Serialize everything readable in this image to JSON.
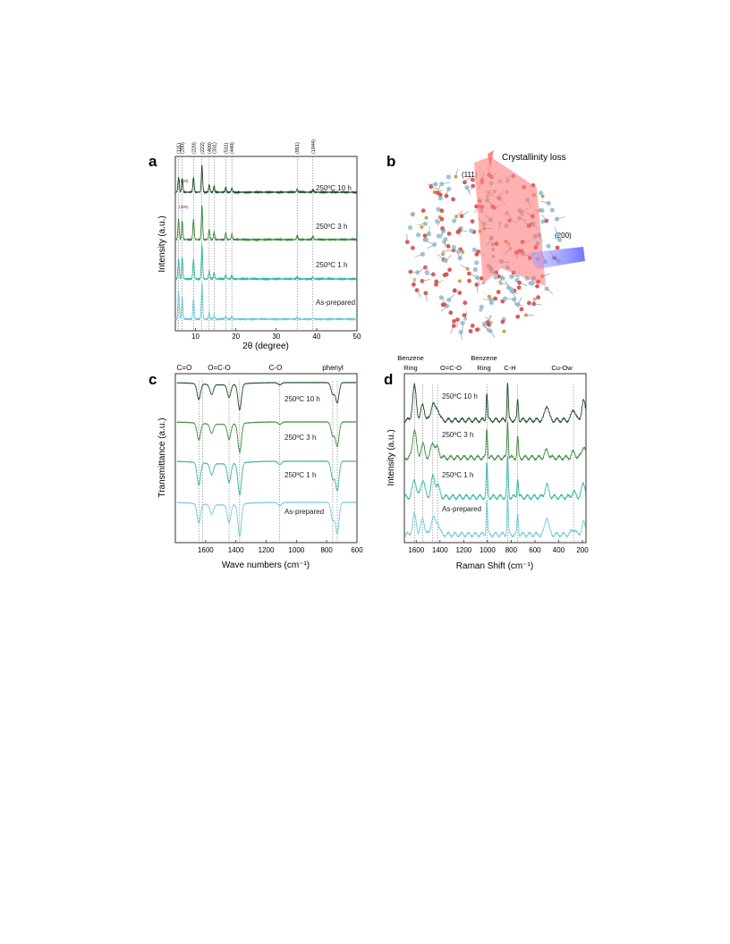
{
  "figure": {
    "panels": {
      "a": {
        "letter": "a",
        "hkl_labels": [
          "(111)",
          "(200)",
          "(220)",
          "(222)",
          "(400)",
          "(331)",
          "(511)",
          "(440)",
          "(851)",
          "(1044)"
        ],
        "trace_labels": [
          "250ºC 10 h",
          "250ºC 3 h",
          "250ºC 1 h",
          "As-prepared"
        ],
        "mini_labels": [
          "(200)",
          "(200)"
        ]
      },
      "b": {
        "letter": "b",
        "title": "Crystallinity loss",
        "label_111": "(111)",
        "label_200": "(200)"
      },
      "c": {
        "letter": "c",
        "group_labels": [
          "C=O",
          "O=C-O",
          "C-O",
          "phenyl"
        ],
        "trace_labels": [
          "250ºC 10 h",
          "250ºC 3 h",
          "250ºC 1 h",
          "As-prepared"
        ]
      },
      "d": {
        "letter": "d",
        "group_labels": [
          "Benzene\nRing",
          "O=C-O",
          "Benzene\nRing",
          "C-H",
          "Cu-Ow"
        ],
        "trace_labels": [
          "250ºC 10 h",
          "250ºC 3 h",
          "250ºC 1 h",
          "As-prepared"
        ]
      }
    },
    "colors": {
      "t10h": "#1b4d24",
      "t3h": "#3a8a3a",
      "t1h": "#36b5a6",
      "asprep": "#6fc9dc",
      "guide": "#555555"
    }
  },
  "chart_data": [
    {
      "type": "line",
      "panel": "a",
      "xlabel": "2θ (degree)",
      "ylabel": "Intensity (a.u.)",
      "xlim": [
        5,
        50
      ],
      "xticks": [
        10,
        20,
        30,
        40,
        50
      ],
      "peak_positions": [
        5.8,
        6.7,
        9.5,
        11.6,
        13.4,
        14.6,
        17.5,
        19.0,
        35.2,
        39.1
      ],
      "series": [
        {
          "name": "250ºC 10 h",
          "peaks": [
            [
              5.8,
              0.55
            ],
            [
              6.7,
              0.5
            ],
            [
              9.5,
              0.55
            ],
            [
              11.6,
              1.0
            ],
            [
              13.4,
              0.28
            ],
            [
              14.6,
              0.22
            ],
            [
              17.5,
              0.18
            ],
            [
              19.0,
              0.15
            ],
            [
              35.2,
              0.12
            ],
            [
              39.1,
              0.1
            ]
          ]
        },
        {
          "name": "250ºC 3 h",
          "peaks": [
            [
              5.8,
              0.6
            ],
            [
              6.7,
              0.55
            ],
            [
              9.5,
              0.6
            ],
            [
              11.6,
              1.0
            ],
            [
              13.4,
              0.3
            ],
            [
              14.6,
              0.22
            ],
            [
              17.5,
              0.2
            ],
            [
              19.0,
              0.16
            ],
            [
              35.2,
              0.12
            ],
            [
              39.1,
              0.1
            ]
          ]
        },
        {
          "name": "250ºC 1 h",
          "peaks": [
            [
              5.8,
              0.55
            ],
            [
              6.7,
              0.6
            ],
            [
              9.5,
              0.55
            ],
            [
              11.6,
              0.95
            ],
            [
              13.4,
              0.22
            ],
            [
              14.6,
              0.18
            ],
            [
              17.5,
              0.12
            ],
            [
              19.0,
              0.1
            ],
            [
              35.2,
              0.06
            ],
            [
              39.1,
              0.05
            ]
          ]
        },
        {
          "name": "As-prepared",
          "peaks": [
            [
              5.8,
              0.75
            ],
            [
              6.7,
              0.6
            ],
            [
              9.5,
              0.55
            ],
            [
              11.6,
              0.95
            ],
            [
              13.4,
              0.18
            ],
            [
              14.6,
              0.12
            ],
            [
              17.5,
              0.08
            ],
            [
              19.0,
              0.06
            ],
            [
              35.2,
              0.04
            ],
            [
              39.1,
              0.03
            ]
          ]
        }
      ]
    },
    {
      "type": "line",
      "panel": "c",
      "xlabel": "Wave numbers (cm⁻¹)",
      "ylabel": "Transmittance (a.u.)",
      "xlim": [
        1800,
        600
      ],
      "xticks": [
        1600,
        1400,
        1200,
        1000,
        800,
        600
      ],
      "guide_positions": [
        1645,
        1620,
        1445,
        1375,
        1110,
        760,
        730
      ],
      "series": [
        {
          "name": "250ºC 10 h",
          "bands": [
            [
              1645,
              0.55
            ],
            [
              1560,
              0.35
            ],
            [
              1445,
              0.45
            ],
            [
              1375,
              0.9
            ],
            [
              1110,
              0.08
            ],
            [
              760,
              0.4
            ],
            [
              730,
              0.7
            ]
          ]
        },
        {
          "name": "250ºC 3 h",
          "bands": [
            [
              1645,
              0.55
            ],
            [
              1560,
              0.3
            ],
            [
              1445,
              0.5
            ],
            [
              1375,
              0.95
            ],
            [
              1110,
              0.08
            ],
            [
              760,
              0.45
            ],
            [
              730,
              0.8
            ]
          ]
        },
        {
          "name": "250ºC 1 h",
          "bands": [
            [
              1645,
              0.7
            ],
            [
              1560,
              0.35
            ],
            [
              1445,
              0.6
            ],
            [
              1375,
              1.0
            ],
            [
              1110,
              0.1
            ],
            [
              760,
              0.55
            ],
            [
              730,
              0.9
            ]
          ]
        },
        {
          "name": "As-prepared",
          "bands": [
            [
              1645,
              0.6
            ],
            [
              1560,
              0.3
            ],
            [
              1445,
              0.55
            ],
            [
              1375,
              1.0
            ],
            [
              1110,
              0.1
            ],
            [
              760,
              0.55
            ],
            [
              730,
              0.95
            ]
          ]
        }
      ]
    },
    {
      "type": "line",
      "panel": "d",
      "xlabel": "Raman Shift (cm⁻¹)",
      "ylabel": "Intensity (a.u.)",
      "xlim": [
        1700,
        170
      ],
      "xticks": [
        1600,
        1400,
        1200,
        1000,
        800,
        600,
        400,
        200
      ],
      "guide_positions": [
        1615,
        1545,
        1460,
        1420,
        1005,
        830,
        745,
        275
      ],
      "series": [
        {
          "name": "250ºC 10 h",
          "bands": [
            [
              1615,
              0.9
            ],
            [
              1545,
              0.4
            ],
            [
              1460,
              0.45
            ],
            [
              1420,
              0.3
            ],
            [
              1005,
              0.75
            ],
            [
              830,
              1.0
            ],
            [
              745,
              0.55
            ],
            [
              500,
              0.4
            ],
            [
              275,
              0.3
            ],
            [
              190,
              0.5
            ]
          ]
        },
        {
          "name": "250ºC 3 h",
          "bands": [
            [
              1615,
              0.75
            ],
            [
              1545,
              0.35
            ],
            [
              1460,
              0.4
            ],
            [
              1420,
              0.25
            ],
            [
              1005,
              0.8
            ],
            [
              830,
              1.0
            ],
            [
              745,
              0.55
            ],
            [
              500,
              0.2
            ],
            [
              275,
              0.15
            ],
            [
              190,
              0.3
            ]
          ]
        },
        {
          "name": "250ºC 1 h",
          "bands": [
            [
              1615,
              0.45
            ],
            [
              1545,
              0.45
            ],
            [
              1460,
              0.5
            ],
            [
              1420,
              0.3
            ],
            [
              1005,
              0.85
            ],
            [
              830,
              1.0
            ],
            [
              745,
              0.5
            ],
            [
              500,
              0.3
            ],
            [
              275,
              0.12
            ],
            [
              190,
              0.35
            ]
          ]
        },
        {
          "name": "As-prepared",
          "bands": [
            [
              1615,
              0.5
            ],
            [
              1545,
              0.4
            ],
            [
              1460,
              0.45
            ],
            [
              1420,
              0.3
            ],
            [
              1005,
              0.9
            ],
            [
              830,
              1.0
            ],
            [
              745,
              0.55
            ],
            [
              500,
              0.45
            ],
            [
              275,
              0.15
            ],
            [
              190,
              0.3
            ]
          ]
        }
      ]
    }
  ]
}
